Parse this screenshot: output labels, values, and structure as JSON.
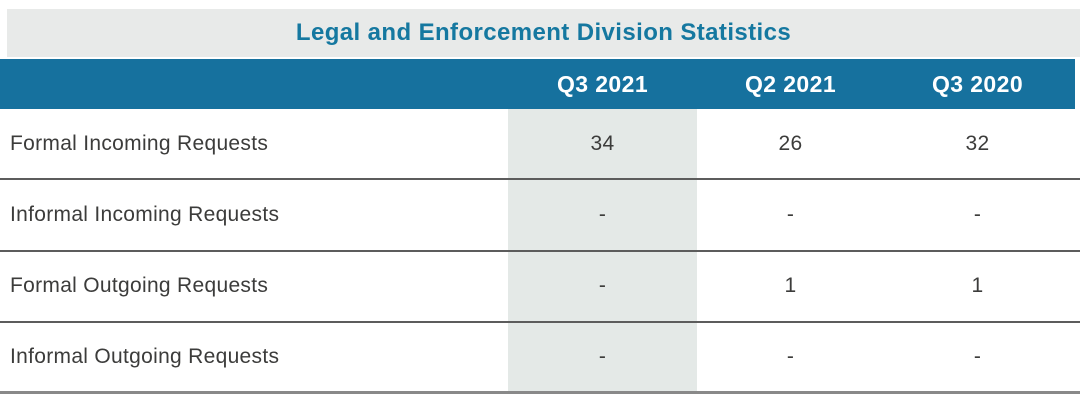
{
  "chart_data": {
    "type": "table",
    "title": "Legal and Enforcement Division Statistics",
    "categories": [
      "Q3 2021",
      "Q2 2021",
      "Q3 2020"
    ],
    "highlighted_column": "Q3 2021",
    "rows": [
      {
        "label": "Formal Incoming Requests",
        "values": [
          "34",
          "26",
          "32"
        ]
      },
      {
        "label": "Informal Incoming Requests",
        "values": [
          "-",
          "-",
          "-"
        ]
      },
      {
        "label": "Formal Outgoing Requests",
        "values": [
          "-",
          "1",
          "1"
        ]
      },
      {
        "label": "Informal Outgoing Requests",
        "values": [
          "-",
          "-",
          "-"
        ]
      }
    ]
  },
  "colors": {
    "title_text": "#1578A0",
    "title_band_bg": "#E8EAE9",
    "header_bg": "#16719E",
    "header_text": "#FFFFFF",
    "highlight_column_bg": "#E4E9E7",
    "row_text": "#3C3C3B",
    "row_separator": "#5C5C5C",
    "bottom_border": "#898989"
  }
}
